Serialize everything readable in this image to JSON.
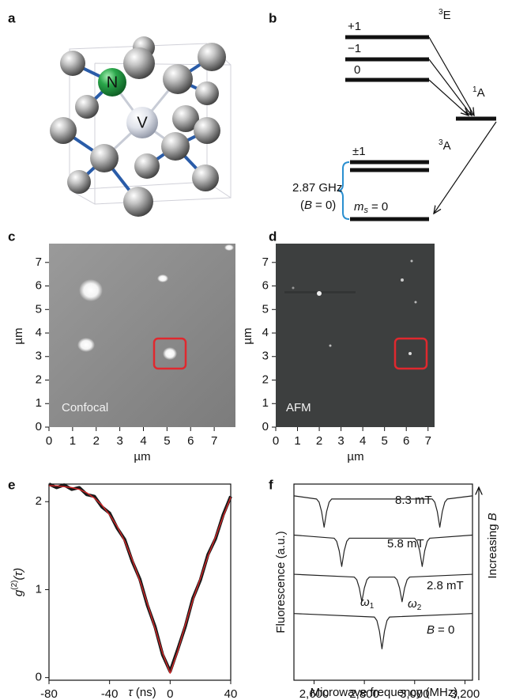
{
  "panels": {
    "a": {
      "label": "a",
      "atoms": [
        "N",
        "V"
      ]
    },
    "b": {
      "label": "b",
      "levels_3E": [
        "+1",
        "−1",
        "0"
      ],
      "term_3E": {
        "sup": "3",
        "name": "E"
      },
      "term_1A": {
        "sup": "1",
        "name": "A"
      },
      "term_3A": {
        "sup": "3",
        "name": "A"
      },
      "levels_3A": [
        "±1"
      ],
      "ground": {
        "symbol": "m",
        "sub": "s",
        "rest": "= 0"
      },
      "splitting": {
        "text": "2.87 GHz",
        "condition": {
          "open": "(",
          "var": "B",
          "rest": "= 0)"
        }
      }
    }
  },
  "chart_data": [
    {
      "type": "image",
      "panel_label": "c",
      "annotation": "Confocal",
      "xlabel": "µm",
      "ylabel": "µm",
      "xlim": [
        0,
        7.9
      ],
      "ylim": [
        0,
        7.8
      ],
      "xticks": [
        0,
        1,
        2,
        3,
        4,
        5,
        6,
        7
      ],
      "yticks": [
        0,
        1,
        2,
        3,
        4,
        5,
        6,
        7
      ]
    },
    {
      "type": "image",
      "panel_label": "d",
      "annotation": "AFM",
      "xlabel": "µm",
      "ylabel": "µm",
      "xlim": [
        0,
        7.3
      ],
      "ylim": [
        0,
        7.8
      ],
      "xticks": [
        0,
        1,
        2,
        3,
        4,
        5,
        6,
        7
      ],
      "yticks": [
        0,
        1,
        2,
        3,
        4,
        5,
        6,
        7
      ]
    },
    {
      "type": "line",
      "panel_label": "e",
      "xlabel": {
        "var": "τ",
        "unit": "(ns)"
      },
      "ylabel": {
        "base": "g",
        "sup": "(2)",
        "arg": "(τ)"
      },
      "x": [
        -80,
        -75,
        -70,
        -65,
        -60,
        -55,
        -50,
        -45,
        -40,
        -35,
        -30,
        -25,
        -20,
        -15,
        -10,
        -5,
        0,
        5,
        10,
        15,
        20,
        25,
        30,
        35,
        40
      ],
      "series": [
        {
          "color": "#1a1a1a",
          "values": [
            2.2,
            2.16,
            2.19,
            2.14,
            2.16,
            2.08,
            2.06,
            1.94,
            1.87,
            1.7,
            1.57,
            1.32,
            1.12,
            0.82,
            0.58,
            0.26,
            0.07,
            0.32,
            0.58,
            0.9,
            1.11,
            1.4,
            1.58,
            1.85,
            2.06
          ]
        },
        {
          "color": "#d62728",
          "values": [
            2.18,
            2.18,
            2.17,
            2.16,
            2.14,
            2.1,
            2.04,
            1.96,
            1.85,
            1.72,
            1.55,
            1.34,
            1.1,
            0.84,
            0.56,
            0.28,
            0.05,
            0.3,
            0.6,
            0.88,
            1.13,
            1.38,
            1.6,
            1.83,
            2.05
          ]
        }
      ],
      "xlim": [
        -80,
        40
      ],
      "ylim": [
        -0.03,
        2.2
      ],
      "xticks": [
        -80,
        -40,
        0,
        40
      ],
      "yticks": [
        0,
        1,
        2
      ]
    },
    {
      "type": "line",
      "panel_label": "f",
      "xlabel": "Microwave frequency (MHz)",
      "ylabel": "Fluorescence (a.u.)",
      "axis_annotation": {
        "text": "Increasing",
        "var": "B"
      },
      "dip_labels": [
        {
          "symbol": "ω",
          "sub": "1"
        },
        {
          "symbol": "ω",
          "sub": "2"
        }
      ],
      "series": [
        {
          "label": "8.3 mT",
          "color": "#222222",
          "x": [
            2520,
            2610,
            2620,
            2630,
            2640,
            2650,
            2660,
            2670,
            3070,
            3080,
            3090,
            3100,
            3110,
            3120,
            3130,
            3230
          ],
          "values": [
            4.7,
            4.62,
            4.54,
            4.3,
            3.9,
            4.3,
            4.54,
            4.62,
            4.62,
            4.54,
            4.3,
            3.9,
            4.3,
            4.54,
            4.62,
            4.7
          ]
        },
        {
          "label": "5.8 mT",
          "color": "#222222",
          "x": [
            2520,
            2680,
            2690,
            2700,
            2710,
            2720,
            2730,
            2740,
            3000,
            3010,
            3020,
            3030,
            3040,
            3050,
            3060,
            3230
          ],
          "values": [
            3.7,
            3.62,
            3.54,
            3.3,
            2.9,
            3.3,
            3.54,
            3.62,
            3.62,
            3.54,
            3.3,
            2.9,
            3.3,
            3.54,
            3.62,
            3.7
          ]
        },
        {
          "label": "2.8 mT",
          "color": "#222222",
          "x": [
            2520,
            2760,
            2770,
            2780,
            2790,
            2800,
            2810,
            2820,
            2920,
            2930,
            2940,
            2950,
            2960,
            2970,
            2980,
            3230
          ],
          "values": [
            2.7,
            2.63,
            2.56,
            2.35,
            2.0,
            2.35,
            2.56,
            2.63,
            2.63,
            2.56,
            2.35,
            2.0,
            2.35,
            2.56,
            2.63,
            2.7
          ]
        },
        {
          "label": {
            "var": "B",
            "text": "= 0"
          },
          "color": "#222222",
          "x": [
            2520,
            2840,
            2850,
            2860,
            2870,
            2880,
            2890,
            2900,
            3230
          ],
          "values": [
            1.7,
            1.61,
            1.52,
            1.25,
            0.8,
            1.25,
            1.52,
            1.61,
            1.7
          ]
        }
      ],
      "xlim": [
        2520,
        3230
      ],
      "ylim": [
        0,
        5
      ],
      "xticks": [
        {
          "value": 2600,
          "label": "2,600"
        },
        {
          "value": 2800,
          "label": "2,800"
        },
        {
          "value": 3000,
          "label": "3,000"
        },
        {
          "value": 3200,
          "label": "3,200"
        }
      ]
    }
  ]
}
